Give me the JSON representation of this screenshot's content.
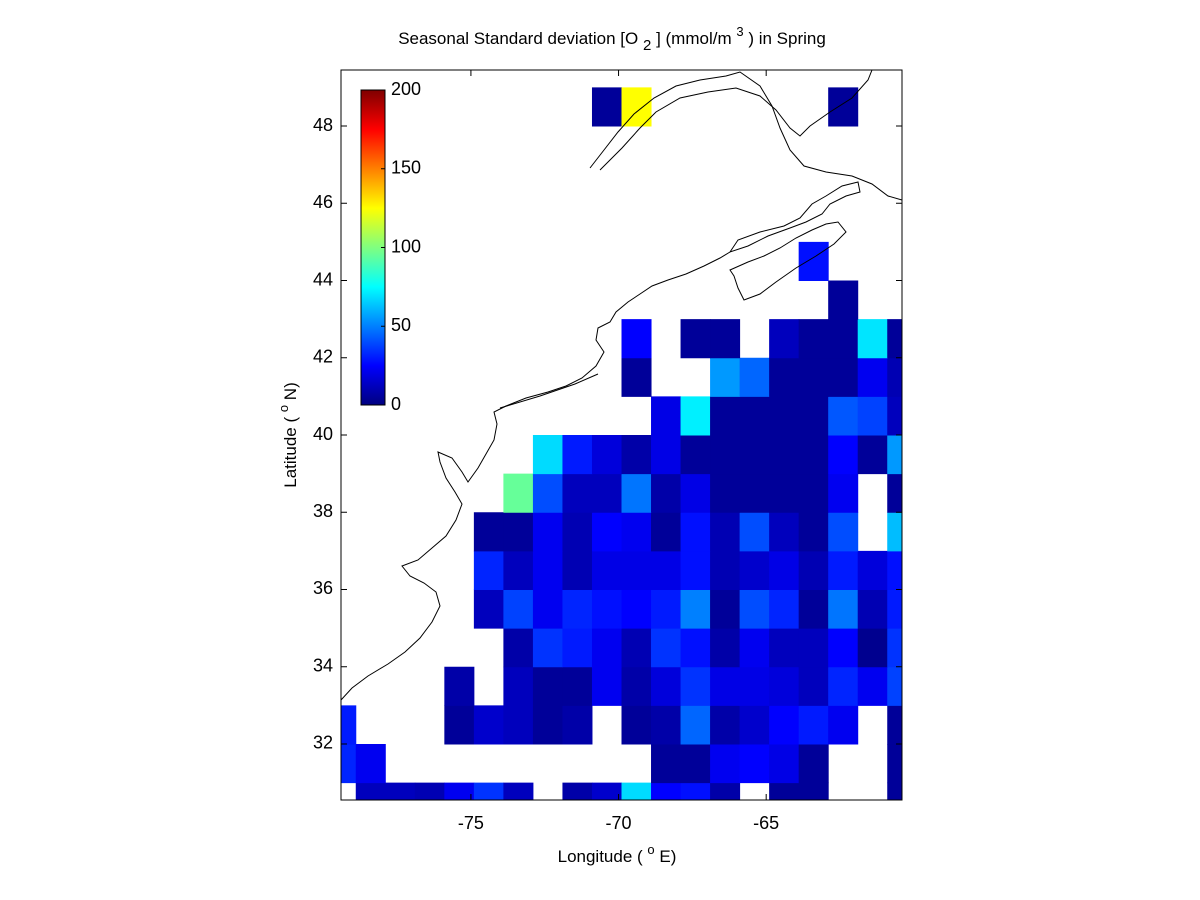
{
  "chart_data": {
    "type": "heatmap",
    "title": [
      "Seasonal Standard deviation [O",
      "2",
      "] (mmol/m",
      "3",
      ") in  Spring"
    ],
    "xlabel": [
      "Longitude ( ",
      "o",
      "E)"
    ],
    "ylabel": [
      "Latitude ( ",
      "o",
      "N)"
    ],
    "colormap": "jet",
    "clim": [
      0,
      200
    ],
    "cticks": [
      0,
      50,
      100,
      150,
      200
    ],
    "xlim": [
      -79.4,
      -60.4
    ],
    "ylim": [
      30.55,
      49.45
    ],
    "xticks": [
      -75,
      -70,
      -65
    ],
    "yticks": [
      32,
      34,
      36,
      38,
      40,
      42,
      44,
      46,
      48
    ],
    "x": [
      -79.4,
      -78.4,
      -77.4,
      -76.4,
      -75.4,
      -74.4,
      -73.4,
      -72.4,
      -71.4,
      -70.4,
      -69.4,
      -68.4,
      -67.4,
      -66.4,
      -65.4,
      -64.4,
      -63.4,
      -62.4,
      -61.4,
      -60.4
    ],
    "y": [
      30.5,
      31.5,
      32.5,
      33.5,
      34.5,
      35.5,
      36.5,
      37.5,
      38.5,
      39.5,
      40.5,
      41.5,
      42.5,
      43.5,
      44.5,
      45.5,
      46.5,
      47.5,
      48.5
    ],
    "z": [
      [
        null,
        12,
        12,
        10,
        22,
        35,
        12,
        null,
        8,
        15,
        68,
        25,
        28,
        8,
        null,
        5,
        5,
        null,
        null,
        5
      ],
      [
        32,
        22,
        null,
        null,
        null,
        null,
        null,
        null,
        null,
        null,
        null,
        5,
        5,
        22,
        25,
        20,
        5,
        null,
        null,
        5
      ],
      [
        30,
        null,
        null,
        null,
        5,
        15,
        12,
        5,
        8,
        null,
        5,
        8,
        45,
        8,
        15,
        25,
        30,
        22,
        null,
        5
      ],
      [
        null,
        null,
        null,
        null,
        8,
        null,
        12,
        5,
        5,
        22,
        8,
        18,
        35,
        20,
        20,
        18,
        12,
        32,
        22,
        38
      ],
      [
        null,
        null,
        null,
        null,
        null,
        null,
        8,
        35,
        30,
        22,
        10,
        35,
        28,
        8,
        22,
        12,
        12,
        25,
        3,
        35
      ],
      [
        null,
        null,
        null,
        null,
        null,
        12,
        38,
        22,
        32,
        28,
        25,
        30,
        50,
        5,
        40,
        32,
        5,
        48,
        10,
        30
      ],
      [
        null,
        null,
        null,
        null,
        null,
        32,
        12,
        22,
        10,
        20,
        20,
        20,
        28,
        10,
        15,
        20,
        10,
        30,
        18,
        28
      ],
      [
        null,
        null,
        null,
        null,
        null,
        5,
        5,
        22,
        10,
        25,
        22,
        5,
        28,
        10,
        40,
        12,
        5,
        40,
        null,
        62
      ],
      [
        null,
        null,
        null,
        null,
        null,
        null,
        95,
        40,
        12,
        12,
        48,
        8,
        20,
        5,
        5,
        5,
        5,
        22,
        null,
        5
      ],
      [
        null,
        null,
        null,
        null,
        null,
        null,
        null,
        68,
        30,
        18,
        8,
        20,
        5,
        5,
        5,
        5,
        5,
        25,
        5,
        55
      ],
      [
        null,
        null,
        null,
        null,
        null,
        null,
        null,
        null,
        null,
        null,
        null,
        20,
        72,
        5,
        5,
        5,
        5,
        42,
        38,
        12
      ],
      [
        null,
        null,
        null,
        null,
        null,
        null,
        null,
        null,
        null,
        null,
        5,
        null,
        null,
        55,
        45,
        5,
        5,
        5,
        22,
        10
      ],
      [
        null,
        null,
        null,
        null,
        null,
        null,
        null,
        null,
        null,
        null,
        25,
        null,
        5,
        5,
        null,
        12,
        5,
        5,
        70,
        5
      ],
      [
        null,
        null,
        null,
        null,
        null,
        null,
        null,
        null,
        null,
        null,
        null,
        null,
        null,
        null,
        null,
        null,
        null,
        5,
        null,
        null
      ],
      [
        null,
        null,
        null,
        null,
        null,
        null,
        null,
        null,
        null,
        null,
        null,
        null,
        null,
        null,
        null,
        null,
        28,
        null,
        null,
        null
      ],
      [
        null,
        null,
        null,
        null,
        null,
        null,
        null,
        null,
        null,
        null,
        null,
        null,
        null,
        null,
        null,
        null,
        null,
        null,
        null,
        null
      ],
      [
        null,
        null,
        null,
        null,
        null,
        null,
        null,
        null,
        null,
        null,
        null,
        null,
        null,
        null,
        null,
        null,
        null,
        null,
        null,
        null
      ],
      [
        null,
        null,
        null,
        null,
        null,
        null,
        null,
        null,
        null,
        null,
        null,
        null,
        null,
        null,
        null,
        null,
        null,
        null,
        null,
        null
      ],
      [
        null,
        null,
        null,
        null,
        null,
        null,
        null,
        null,
        null,
        5,
        125,
        null,
        null,
        null,
        null,
        null,
        null,
        5,
        null,
        null
      ]
    ]
  }
}
